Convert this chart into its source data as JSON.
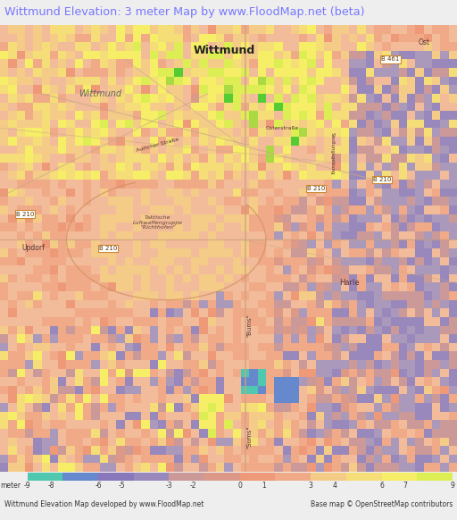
{
  "title": "Wittmund Elevation: 3 meter Map by www.FloodMap.net (beta)",
  "title_color": "#7777ff",
  "title_fontsize": 9.2,
  "title_bg": "#eeeef5",
  "map_bg": "#f5a090",
  "background_color": "#eeeeee",
  "footer_left": "Wittmund Elevation Map developed by www.FloodMap.net",
  "footer_right": "Base map © OpenStreetMap contributors",
  "figsize": [
    5.12,
    5.82
  ],
  "dpi": 100,
  "colorbar_segments": [
    {
      "color": "#50c8b0",
      "label": "-9"
    },
    {
      "color": "#50c8b0",
      "label": null
    },
    {
      "color": "#6688cc",
      "label": "-8"
    },
    {
      "color": "#6688cc",
      "label": null
    },
    {
      "color": "#8877bb",
      "label": "-6"
    },
    {
      "color": "#9988bb",
      "label": "-5"
    },
    {
      "color": "#bb99aa",
      "label": "-3"
    },
    {
      "color": "#cc9999",
      "label": "-2"
    },
    {
      "color": "#dd9988",
      "label": null
    },
    {
      "color": "#ee9977",
      "label": "0"
    },
    {
      "color": "#f0aa88",
      "label": "1"
    },
    {
      "color": "#f2bb99",
      "label": null
    },
    {
      "color": "#f5cc88",
      "label": "3"
    },
    {
      "color": "#f5dd77",
      "label": "4"
    },
    {
      "color": "#f5ee66",
      "label": null
    },
    {
      "color": "#ddee55",
      "label": "6"
    },
    {
      "color": "#aad944",
      "label": "7"
    },
    {
      "color": "#55cc33",
      "label": null
    },
    {
      "color": "#33bb44",
      "label": "9"
    }
  ],
  "road_color": "#c8a888",
  "road_lw": 0.7,
  "label_color": "#553333",
  "badge_color": "#cc8833",
  "badge_bg": "white",
  "town_color": "#333333"
}
